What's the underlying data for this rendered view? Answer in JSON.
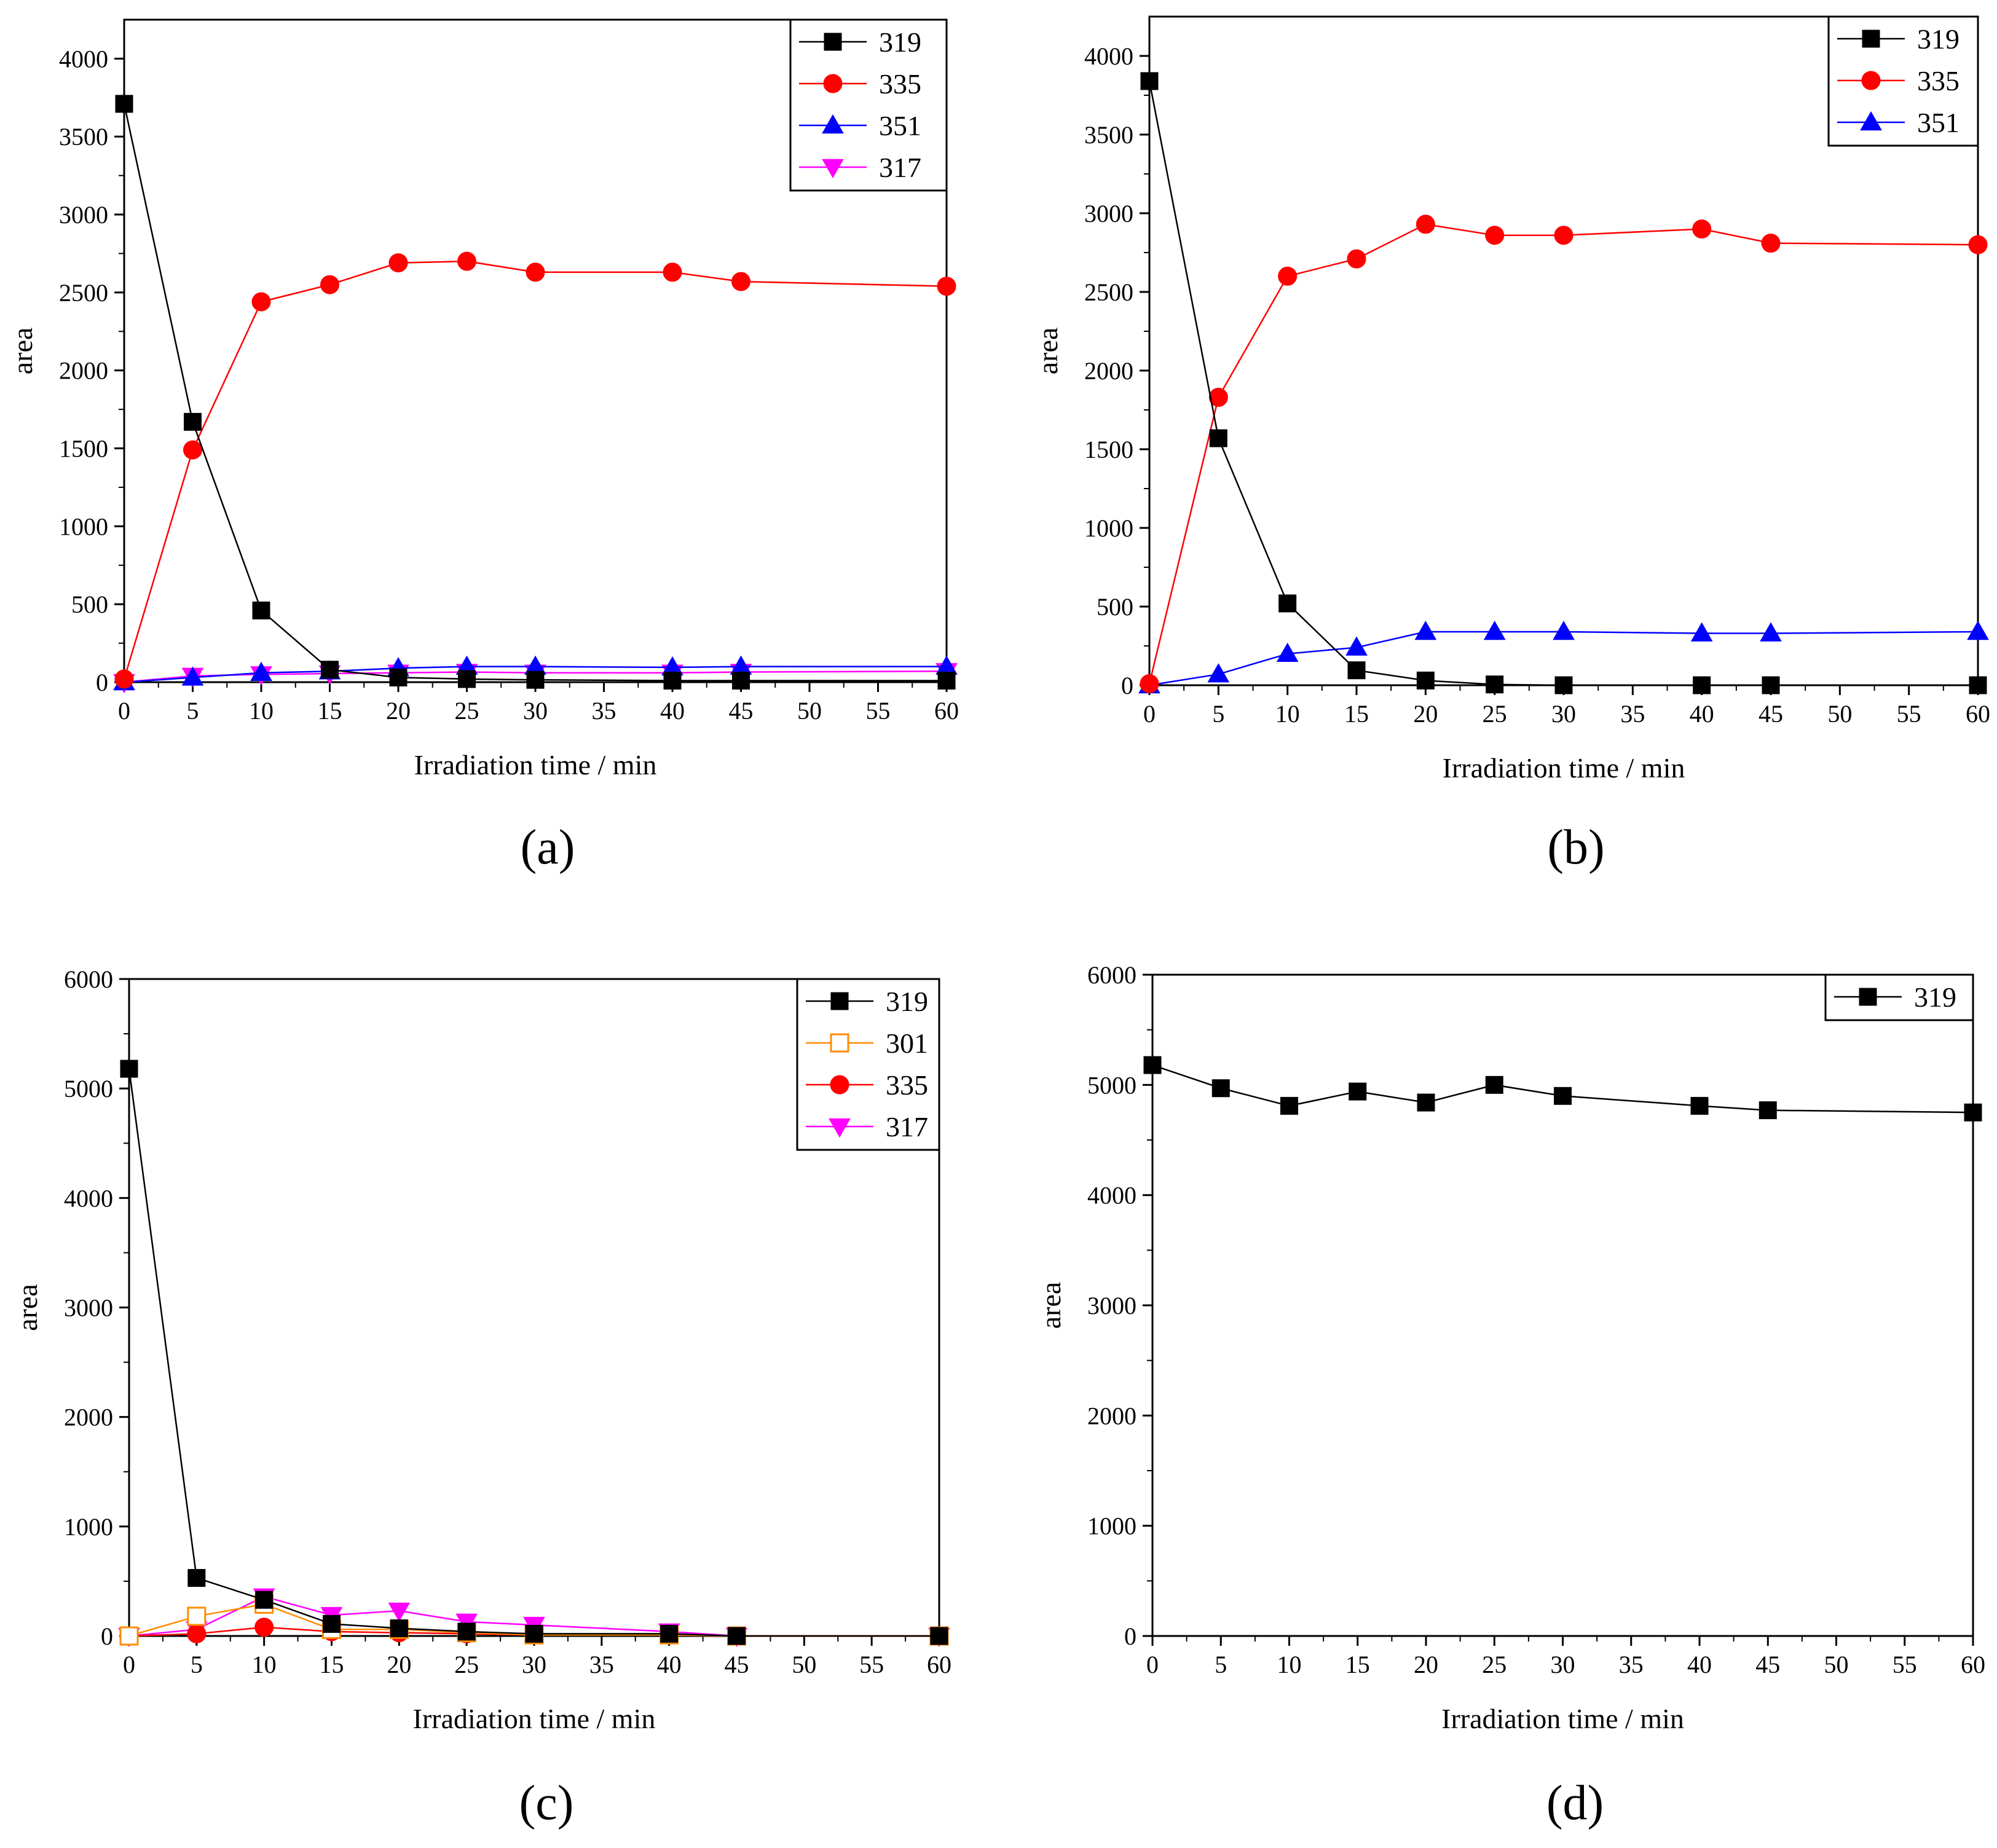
{
  "colors": {
    "s319": "#000000",
    "s335": "#ff0000",
    "s351": "#0000ff",
    "s317": "#ff00ff",
    "s301": "#ff8c00"
  },
  "chart_data": [
    {
      "panel": "(a)",
      "type": "line",
      "xlabel": "Irradiation time / min",
      "ylabel": "area",
      "xlim": [
        0,
        60
      ],
      "ylim": [
        0,
        4250
      ],
      "xticks": [
        0,
        5,
        10,
        15,
        20,
        25,
        30,
        35,
        40,
        45,
        50,
        55,
        60
      ],
      "yticks": [
        0,
        500,
        1000,
        1500,
        2000,
        2500,
        3000,
        3500,
        4000
      ],
      "legend_position": "top-right",
      "series": [
        {
          "name": "319",
          "color": "#000000",
          "marker": "square",
          "filled": true,
          "x": [
            0,
            5,
            10,
            15,
            20,
            25,
            30,
            40,
            45,
            60
          ],
          "values": [
            3710,
            1670,
            460,
            80,
            30,
            20,
            15,
            10,
            10,
            10
          ]
        },
        {
          "name": "335",
          "color": "#ff0000",
          "marker": "circle",
          "filled": true,
          "x": [
            0,
            5,
            10,
            15,
            20,
            25,
            30,
            40,
            45,
            60
          ],
          "values": [
            20,
            1490,
            2440,
            2550,
            2690,
            2700,
            2630,
            2630,
            2570,
            2540
          ]
        },
        {
          "name": "351",
          "color": "#0000ff",
          "marker": "triangle-up",
          "filled": true,
          "x": [
            0,
            5,
            10,
            15,
            20,
            25,
            30,
            40,
            45,
            60
          ],
          "values": [
            0,
            30,
            60,
            70,
            90,
            100,
            100,
            95,
            100,
            100
          ]
        },
        {
          "name": "317",
          "color": "#ff00ff",
          "marker": "triangle-down",
          "filled": true,
          "x": [
            0,
            5,
            10,
            15,
            20,
            25,
            30,
            40,
            45,
            60
          ],
          "values": [
            0,
            40,
            50,
            55,
            60,
            65,
            60,
            60,
            65,
            70
          ]
        }
      ]
    },
    {
      "panel": "(b)",
      "type": "line",
      "xlabel": "Irradiation time / min",
      "ylabel": "area",
      "xlim": [
        0,
        60
      ],
      "ylim": [
        0,
        4250
      ],
      "xticks": [
        0,
        5,
        10,
        15,
        20,
        25,
        30,
        35,
        40,
        45,
        50,
        55,
        60
      ],
      "yticks": [
        0,
        500,
        1000,
        1500,
        2000,
        2500,
        3000,
        3500,
        4000
      ],
      "legend_position": "top-right",
      "series": [
        {
          "name": "319",
          "color": "#000000",
          "marker": "square",
          "filled": true,
          "x": [
            0,
            5,
            10,
            15,
            20,
            25,
            30,
            40,
            45,
            60
          ],
          "values": [
            3840,
            1570,
            520,
            95,
            30,
            5,
            0,
            0,
            0,
            0
          ]
        },
        {
          "name": "335",
          "color": "#ff0000",
          "marker": "circle",
          "filled": true,
          "x": [
            0,
            5,
            10,
            15,
            20,
            25,
            30,
            40,
            45,
            60
          ],
          "values": [
            10,
            1830,
            2600,
            2710,
            2930,
            2860,
            2860,
            2900,
            2810,
            2800
          ]
        },
        {
          "name": "351",
          "color": "#0000ff",
          "marker": "triangle-up",
          "filled": true,
          "x": [
            0,
            5,
            10,
            15,
            20,
            25,
            30,
            40,
            45,
            60
          ],
          "values": [
            0,
            70,
            200,
            240,
            340,
            340,
            340,
            330,
            330,
            340
          ]
        }
      ]
    },
    {
      "panel": "(c)",
      "type": "line",
      "xlabel": "Irradiation time / min",
      "ylabel": "area",
      "xlim": [
        0,
        60
      ],
      "ylim": [
        0,
        6000
      ],
      "xticks": [
        0,
        5,
        10,
        15,
        20,
        25,
        30,
        35,
        40,
        45,
        50,
        55,
        60
      ],
      "yticks": [
        0,
        1000,
        2000,
        3000,
        4000,
        5000,
        6000
      ],
      "legend_position": "top-right",
      "series": [
        {
          "name": "319",
          "color": "#000000",
          "marker": "square",
          "filled": true,
          "x": [
            0,
            5,
            10,
            15,
            20,
            25,
            30,
            40,
            45,
            60
          ],
          "values": [
            5180,
            530,
            330,
            110,
            70,
            40,
            20,
            20,
            0,
            0
          ]
        },
        {
          "name": "301",
          "color": "#ff8c00",
          "marker": "square",
          "filled": false,
          "x": [
            0,
            5,
            10,
            15,
            20,
            25,
            30,
            40,
            45,
            60
          ],
          "values": [
            0,
            180,
            290,
            60,
            60,
            30,
            10,
            10,
            0,
            0
          ]
        },
        {
          "name": "335",
          "color": "#ff0000",
          "marker": "circle",
          "filled": true,
          "x": [
            0,
            5,
            10,
            15,
            20,
            25,
            30,
            40,
            45,
            60
          ],
          "values": [
            0,
            20,
            80,
            40,
            30,
            20,
            10,
            10,
            0,
            0
          ]
        },
        {
          "name": "317",
          "color": "#ff00ff",
          "marker": "triangle-down",
          "filled": true,
          "x": [
            0,
            5,
            10,
            15,
            20,
            25,
            30,
            40,
            45,
            60
          ],
          "values": [
            0,
            60,
            360,
            190,
            230,
            130,
            100,
            40,
            0,
            0
          ]
        }
      ]
    },
    {
      "panel": "(d)",
      "type": "line",
      "xlabel": "Irradiation time / min",
      "ylabel": "area",
      "xlim": [
        0,
        60
      ],
      "ylim": [
        0,
        6000
      ],
      "xticks": [
        0,
        5,
        10,
        15,
        20,
        25,
        30,
        35,
        40,
        45,
        50,
        55,
        60
      ],
      "yticks": [
        0,
        1000,
        2000,
        3000,
        4000,
        5000,
        6000
      ],
      "legend_position": "top-right",
      "series": [
        {
          "name": "319",
          "color": "#000000",
          "marker": "square",
          "filled": true,
          "x": [
            0,
            5,
            10,
            15,
            20,
            25,
            30,
            40,
            45,
            60
          ],
          "values": [
            5180,
            4970,
            4810,
            4940,
            4840,
            5000,
            4900,
            4810,
            4770,
            4750
          ]
        }
      ]
    }
  ]
}
